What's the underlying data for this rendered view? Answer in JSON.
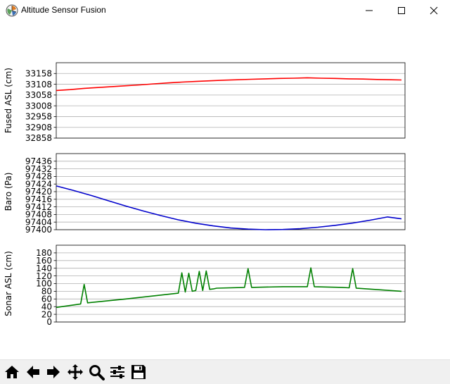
{
  "window": {
    "title": "Altitude Sensor Fusion",
    "icons": {
      "app": "matplotlib-logo-icon",
      "minimize": "minimize-icon",
      "maximize": "maximize-icon",
      "close": "close-icon"
    }
  },
  "toolbar": {
    "buttons": [
      {
        "name": "home-button",
        "icon": "home-icon"
      },
      {
        "name": "back-button",
        "icon": "arrow-left-icon"
      },
      {
        "name": "forward-button",
        "icon": "arrow-right-icon"
      },
      {
        "name": "pan-button",
        "icon": "move-arrows-icon"
      },
      {
        "name": "zoom-button",
        "icon": "magnifier-icon"
      },
      {
        "name": "configure-subplots-button",
        "icon": "sliders-icon"
      },
      {
        "name": "save-button",
        "icon": "floppy-disk-icon"
      }
    ]
  },
  "chart_data": [
    {
      "type": "line",
      "ylabel": "Fused ASL (cm)",
      "ylim": [
        32858,
        33208
      ],
      "yticks": [
        32858,
        32908,
        32958,
        33008,
        33058,
        33108,
        33158
      ],
      "grid": "y",
      "x_range": [
        0,
        100
      ],
      "x_tick_labels": "hidden",
      "series": [
        {
          "color": "#ff0000",
          "x": [
            0,
            4,
            8,
            12,
            16,
            20,
            24,
            28,
            32,
            36,
            40,
            44,
            48,
            52,
            56,
            60,
            64,
            68,
            72,
            76,
            80,
            84,
            88,
            92,
            96,
            99
          ],
          "y": [
            33079,
            33083,
            33089,
            33093,
            33097,
            33101,
            33105,
            33110,
            33114,
            33118,
            33121,
            33124,
            33127,
            33129,
            33131,
            33133,
            33135,
            33136,
            33138,
            33136,
            33135,
            33133,
            33132,
            33130,
            33129,
            33128
          ]
        }
      ]
    },
    {
      "type": "line",
      "ylabel": "Baro (Pa)",
      "ylim": [
        97400,
        97440
      ],
      "yticks": [
        97400,
        97404,
        97408,
        97412,
        97416,
        97420,
        97424,
        97428,
        97432,
        97436
      ],
      "grid": "y",
      "x_range": [
        0,
        100
      ],
      "x_tick_labels": "hidden",
      "series": [
        {
          "color": "#0000cc",
          "x": [
            0,
            5,
            10,
            15,
            20,
            25,
            30,
            35,
            40,
            45,
            50,
            55,
            60,
            65,
            70,
            75,
            80,
            85,
            90,
            95,
            99
          ],
          "y": [
            97423,
            97420.6,
            97418,
            97415.2,
            97412.4,
            97409.8,
            97407.4,
            97405.2,
            97403.4,
            97402,
            97400.9,
            97400.3,
            97400,
            97400.1,
            97400.5,
            97401.3,
            97402.3,
            97403.5,
            97405,
            97406.7,
            97405.7
          ]
        }
      ]
    },
    {
      "type": "line",
      "ylabel": "Sonar ASL (cm)",
      "ylim": [
        0,
        200
      ],
      "yticks": [
        0,
        20,
        40,
        60,
        80,
        100,
        120,
        140,
        160,
        180
      ],
      "grid": "y",
      "x_range": [
        0,
        100
      ],
      "x_tick_labels": "hidden",
      "series": [
        {
          "color": "#008000",
          "x": [
            0,
            7,
            8,
            9,
            20,
            35,
            36,
            37,
            38,
            39,
            40,
            41,
            42,
            43,
            44,
            45,
            46,
            54,
            55,
            56,
            65,
            72,
            73,
            74,
            82,
            84,
            85,
            86,
            99
          ],
          "y": [
            38,
            47,
            98,
            50,
            60,
            75,
            128,
            78,
            127,
            80,
            82,
            132,
            82,
            133,
            85,
            86,
            88,
            90,
            139,
            90,
            92,
            92,
            141,
            92,
            90,
            89,
            139,
            88,
            80
          ]
        }
      ]
    }
  ]
}
